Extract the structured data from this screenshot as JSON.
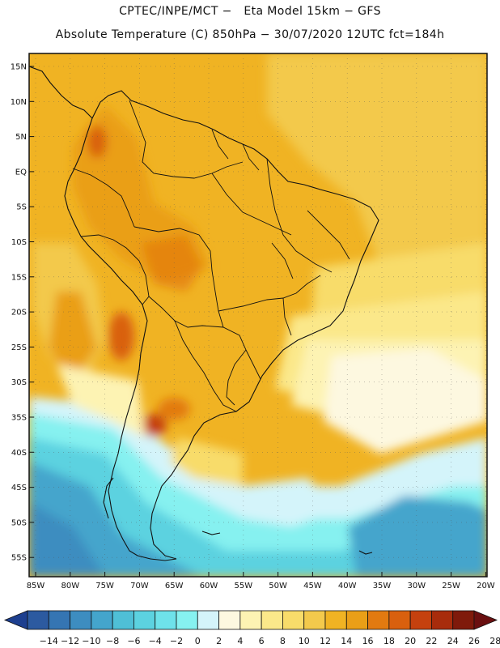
{
  "header": {
    "line1": "CPTEC/INPE/MCT −   Eta Model 15km − GFS",
    "line2": "Absolute Temperature (C) 850hPa − 30/07/2020 12UTC fct=184h"
  },
  "map": {
    "lat_labels": [
      "15N",
      "10N",
      "5N",
      "EQ",
      "5S",
      "10S",
      "15S",
      "20S",
      "25S",
      "30S",
      "35S",
      "40S",
      "45S",
      "50S",
      "55S"
    ],
    "lon_labels": [
      "85W",
      "80W",
      "75W",
      "70W",
      "65W",
      "60W",
      "55W",
      "50W",
      "45W",
      "40W",
      "35W",
      "30W",
      "25W",
      "20W"
    ]
  },
  "colorbar": {
    "labels": [
      "-14",
      "-12",
      "-10",
      "-8",
      "-6",
      "-4",
      "-2",
      "0",
      "2",
      "4",
      "6",
      "8",
      "10",
      "12",
      "14",
      "16",
      "18",
      "20",
      "22",
      "24",
      "26",
      "28"
    ],
    "colors": [
      "#1d3f8f",
      "#2c5aa0",
      "#3575b3",
      "#3d8dc0",
      "#44a5cc",
      "#4fbfd6",
      "#5cd2e0",
      "#6ee2ea",
      "#86f1f0",
      "#d4f4fa",
      "#fdf8e0",
      "#fdf3b3",
      "#fbe88a",
      "#f8dc6a",
      "#f3c94c",
      "#f0b323",
      "#ea9f17",
      "#e27a10",
      "#d9600e",
      "#c5410e",
      "#a82c0c",
      "#7f1a0b",
      "#6a0f10"
    ]
  }
}
